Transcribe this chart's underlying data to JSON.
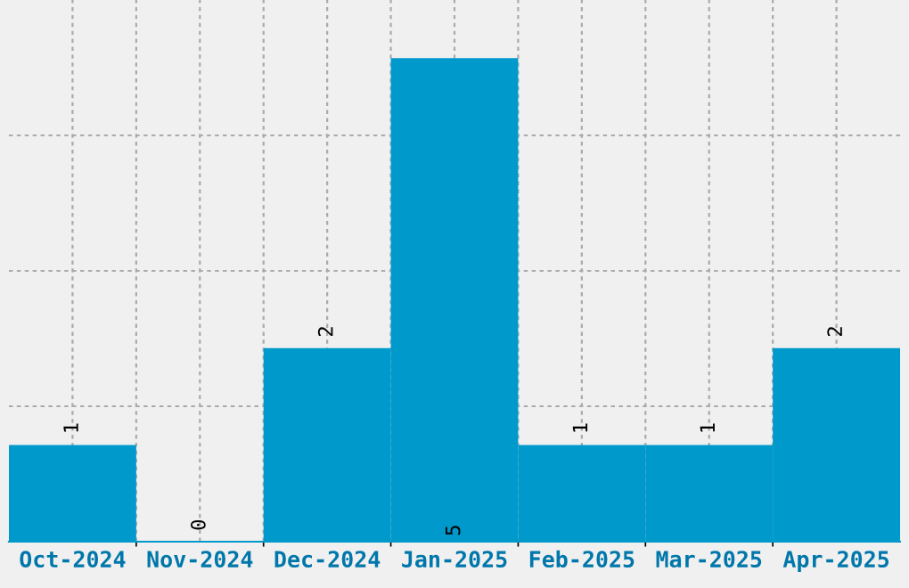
{
  "chart_data": {
    "type": "bar",
    "categories": [
      "Oct-2024",
      "Nov-2024",
      "Dec-2024",
      "Jan-2025",
      "Feb-2025",
      "Mar-2025",
      "Apr-2025"
    ],
    "values": [
      1,
      0,
      2,
      5,
      1,
      1,
      2
    ],
    "color": "#0099cc",
    "ylim": [
      0,
      5.6
    ],
    "yticks": [
      {
        "value": 1.4,
        "label": null
      },
      {
        "value": 2.8,
        "label": null
      },
      {
        "value": 4.2,
        "label": null
      }
    ],
    "tick_labels": "x",
    "grid": true,
    "data_labels": true
  }
}
